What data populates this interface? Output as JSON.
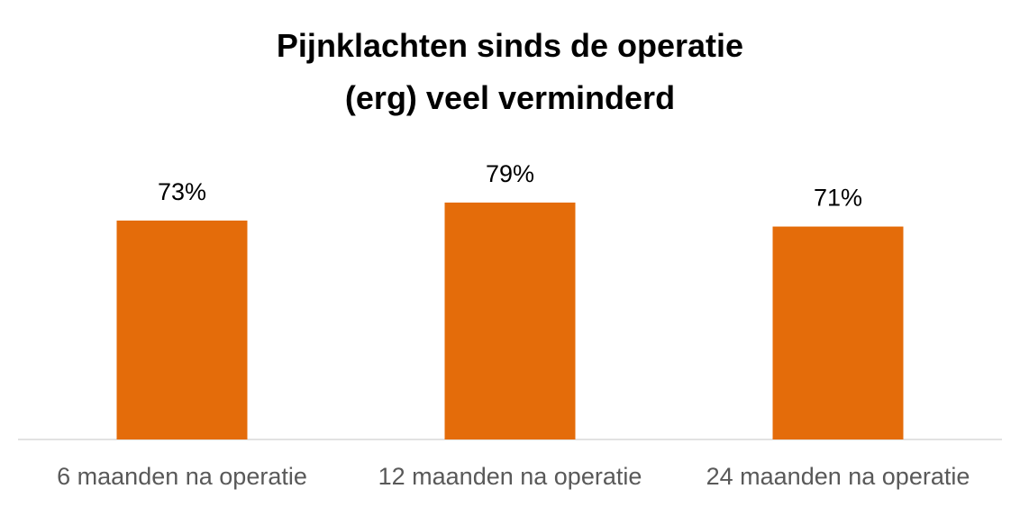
{
  "chart_data": {
    "type": "bar",
    "title": "Pijnklachten sinds de operatie (erg) veel verminderd",
    "categories": [
      "6 maanden na operatie",
      "12 maanden na operatie",
      "24 maanden na operatie"
    ],
    "values": [
      73,
      79,
      71
    ],
    "value_labels": [
      "73%",
      "79%",
      "71%"
    ],
    "color": "#e46c0a"
  }
}
